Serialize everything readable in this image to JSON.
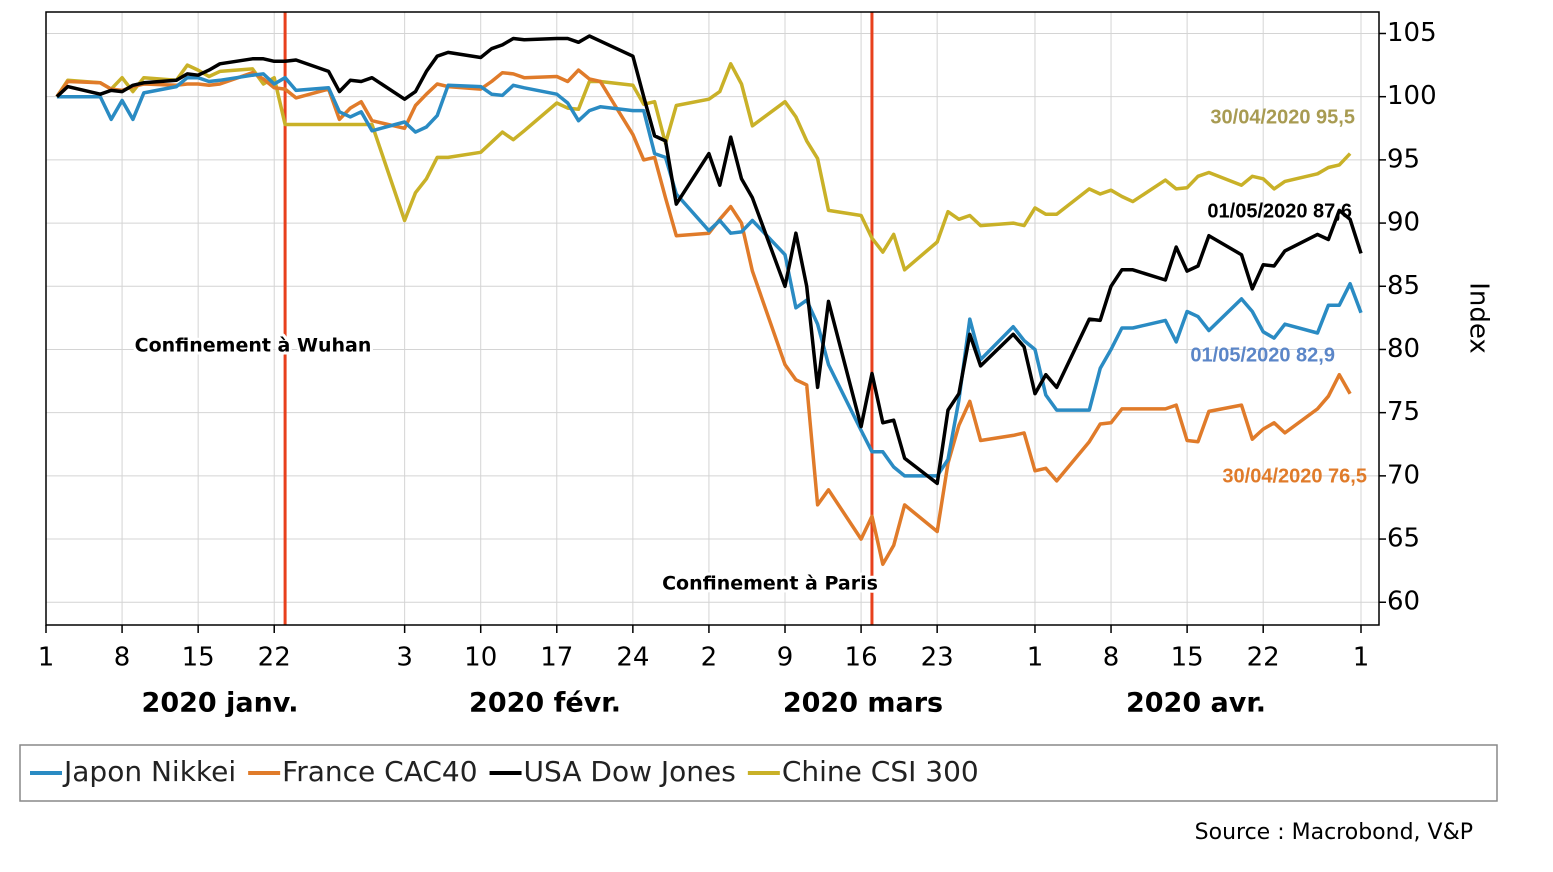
{
  "chart_data": {
    "type": "line",
    "y_label": "Index",
    "source": "Source : Macrobond, V&P",
    "xlim": [
      "2020-01-01",
      "2020-05-01"
    ],
    "ylim": [
      58.2,
      106.7
    ],
    "yticks": [
      60,
      65,
      70,
      75,
      80,
      85,
      90,
      95,
      100,
      105
    ],
    "xticks": [
      {
        "value": "2020-01-01",
        "label": "1"
      },
      {
        "value": "2020-01-08",
        "label": "8"
      },
      {
        "value": "2020-01-15",
        "label": "15"
      },
      {
        "value": "2020-01-22",
        "label": "22"
      },
      {
        "value": "2020-02-03",
        "label": "3"
      },
      {
        "value": "2020-02-10",
        "label": "10"
      },
      {
        "value": "2020-02-17",
        "label": "17"
      },
      {
        "value": "2020-02-24",
        "label": "24"
      },
      {
        "value": "2020-03-02",
        "label": "2"
      },
      {
        "value": "2020-03-09",
        "label": "9"
      },
      {
        "value": "2020-03-16",
        "label": "16"
      },
      {
        "value": "2020-03-23",
        "label": "23"
      },
      {
        "value": "2020-04-01",
        "label": "1"
      },
      {
        "value": "2020-04-08",
        "label": "8"
      },
      {
        "value": "2020-04-15",
        "label": "15"
      },
      {
        "value": "2020-04-22",
        "label": "22"
      },
      {
        "value": "2020-05-01",
        "label": "1"
      }
    ],
    "month_labels": [
      "2020 janv.",
      "2020 févr.",
      "2020 mars",
      "2020 avr."
    ],
    "grid": true,
    "legend": "bottom",
    "events": [
      {
        "date": "2020-01-23",
        "text": "Confinement à Wuhan",
        "color": "#e8401c"
      },
      {
        "date": "2020-03-17",
        "text": "Confinement à Paris",
        "color": "#e8401c"
      }
    ],
    "annotations": [
      {
        "text": "30/04/2020 95,5",
        "color": "#a89b52"
      },
      {
        "text": "01/05/2020 87,6",
        "color": "#000000"
      },
      {
        "text": "01/05/2020 82,9",
        "color": "#5b86c8"
      },
      {
        "text": "30/04/2020 76,5",
        "color": "#e07b2a"
      }
    ],
    "x": [
      "2020-01-02",
      "2020-01-03",
      "2020-01-06",
      "2020-01-07",
      "2020-01-08",
      "2020-01-09",
      "2020-01-10",
      "2020-01-13",
      "2020-01-14",
      "2020-01-15",
      "2020-01-16",
      "2020-01-17",
      "2020-01-20",
      "2020-01-21",
      "2020-01-22",
      "2020-01-23",
      "2020-01-24",
      "2020-01-27",
      "2020-01-28",
      "2020-01-29",
      "2020-01-30",
      "2020-01-31",
      "2020-02-03",
      "2020-02-04",
      "2020-02-05",
      "2020-02-06",
      "2020-02-07",
      "2020-02-10",
      "2020-02-11",
      "2020-02-12",
      "2020-02-13",
      "2020-02-14",
      "2020-02-17",
      "2020-02-18",
      "2020-02-19",
      "2020-02-20",
      "2020-02-21",
      "2020-02-24",
      "2020-02-25",
      "2020-02-26",
      "2020-02-27",
      "2020-02-28",
      "2020-03-02",
      "2020-03-03",
      "2020-03-04",
      "2020-03-05",
      "2020-03-06",
      "2020-03-09",
      "2020-03-10",
      "2020-03-11",
      "2020-03-12",
      "2020-03-13",
      "2020-03-16",
      "2020-03-17",
      "2020-03-18",
      "2020-03-19",
      "2020-03-20",
      "2020-03-23",
      "2020-03-24",
      "2020-03-25",
      "2020-03-26",
      "2020-03-27",
      "2020-03-30",
      "2020-03-31",
      "2020-04-01",
      "2020-04-02",
      "2020-04-03",
      "2020-04-06",
      "2020-04-07",
      "2020-04-08",
      "2020-04-09",
      "2020-04-10",
      "2020-04-13",
      "2020-04-14",
      "2020-04-15",
      "2020-04-16",
      "2020-04-17",
      "2020-04-20",
      "2020-04-21",
      "2020-04-22",
      "2020-04-23",
      "2020-04-24",
      "2020-04-27",
      "2020-04-28",
      "2020-04-29",
      "2020-04-30",
      "2020-05-01"
    ],
    "series": [
      {
        "name": "Japon Nikkei",
        "color": "#2a8bc3",
        "values": [
          100,
          100,
          100,
          98.2,
          99.7,
          98.2,
          100.3,
          100.8,
          101.5,
          101.5,
          101.2,
          101.3,
          101.7,
          101.8,
          101,
          101.5,
          100.5,
          100.7,
          98.8,
          98.4,
          98.8,
          97.3,
          98,
          97.2,
          97.6,
          98.5,
          100.9,
          100.8,
          100.2,
          100.1,
          100.9,
          100.7,
          100.2,
          99.5,
          98.1,
          98.9,
          99.2,
          98.9,
          98.9,
          95.5,
          95.2,
          92.3,
          89.4,
          90.2,
          89.2,
          89.3,
          90.2,
          87.5,
          83.3,
          83.9,
          82,
          78.8,
          73.6,
          71.9,
          71.9,
          70.7,
          70,
          70,
          71.3,
          76,
          82.4,
          79.2,
          81.8,
          80.7,
          80,
          76.4,
          75.2,
          75.2,
          78.5,
          80,
          81.7,
          81.7,
          82.3,
          80.6,
          83,
          82.6,
          81.5,
          84,
          83,
          81.4,
          80.9,
          82,
          81.3,
          83.5,
          83.5,
          85.2,
          82.9
        ]
      },
      {
        "name": "France CAC40",
        "color": "#e07b2a",
        "values": [
          100,
          101.2,
          101.1,
          100.6,
          100.5,
          100.8,
          101,
          100.9,
          101,
          101,
          100.9,
          101,
          101.9,
          101.4,
          100.7,
          100.6,
          99.9,
          100.6,
          98.2,
          99.1,
          99.6,
          98.1,
          97.5,
          99.3,
          100.2,
          101,
          100.8,
          100.6,
          101.2,
          101.9,
          101.8,
          101.5,
          101.6,
          101.2,
          102.1,
          101.4,
          101.2,
          97,
          95,
          95.2,
          92,
          89,
          89.2,
          90.3,
          91.3,
          90,
          86.2,
          78.8,
          77.6,
          77.2,
          67.7,
          68.9,
          65,
          66.8,
          63,
          64.5,
          67.7,
          65.6,
          71,
          74,
          75.9,
          72.8,
          73.2,
          73.4,
          70.4,
          70.6,
          69.6,
          72.7,
          74.1,
          74.2,
          75.3,
          75.3,
          75.3,
          75.6,
          72.8,
          72.7,
          75.1,
          75.6,
          72.9,
          73.7,
          74.2,
          73.4,
          75.3,
          76.3,
          78,
          76.5,
          null
        ]
      },
      {
        "name": "USA Dow Jones",
        "color": "#000000",
        "values": [
          100,
          100.8,
          100.2,
          100.5,
          100.4,
          100.9,
          101.1,
          101.3,
          101.8,
          101.7,
          102.1,
          102.6,
          103,
          103,
          102.8,
          102.8,
          102.9,
          102,
          100.4,
          101.3,
          101.2,
          101.5,
          99.8,
          100.4,
          102,
          103.2,
          103.5,
          103.1,
          103.8,
          104.1,
          104.6,
          104.5,
          104.6,
          104.6,
          104.3,
          104.8,
          104.4,
          103.2,
          100,
          96.9,
          96.5,
          91.5,
          95.5,
          93,
          96.8,
          93.5,
          92,
          85,
          89.2,
          85,
          77,
          83.8,
          73.9,
          78.1,
          74.2,
          74.4,
          71.4,
          69.4,
          75.2,
          76.5,
          81.2,
          78.7,
          81.2,
          80.2,
          76.5,
          78,
          77,
          82.4,
          82.3,
          85,
          86.3,
          86.3,
          85.5,
          88.1,
          86.2,
          86.6,
          89,
          87.5,
          84.8,
          86.7,
          86.6,
          87.8,
          89.1,
          88.7,
          91,
          90.3,
          87.6
        ]
      },
      {
        "name": "Chine CSI 300",
        "color": "#c9b128",
        "values": [
          100,
          101.3,
          101.1,
          100.6,
          101.5,
          100.4,
          101.5,
          101.3,
          102.5,
          102.1,
          101.6,
          102,
          102.2,
          101,
          101.5,
          97.8,
          97.8,
          97.8,
          97.8,
          97.8,
          97.8,
          97.8,
          90.2,
          92.4,
          93.5,
          95.2,
          95.2,
          95.6,
          96.4,
          97.2,
          96.6,
          97.3,
          99.5,
          99.1,
          99,
          101.2,
          101.2,
          100.9,
          99.4,
          99.6,
          96.3,
          99.3,
          99.8,
          100.4,
          102.6,
          101,
          97.7,
          99.6,
          98.4,
          96.5,
          95.1,
          91,
          90.6,
          88.8,
          87.7,
          89.1,
          86.3,
          88.5,
          90.9,
          90.3,
          90.6,
          89.8,
          90,
          89.8,
          91.2,
          90.7,
          90.7,
          92.7,
          92.3,
          92.6,
          92.1,
          91.7,
          93.4,
          92.7,
          92.8,
          93.7,
          94,
          93,
          93.7,
          93.5,
          92.7,
          93.3,
          93.9,
          94.4,
          94.6,
          95.5,
          null
        ]
      }
    ]
  }
}
